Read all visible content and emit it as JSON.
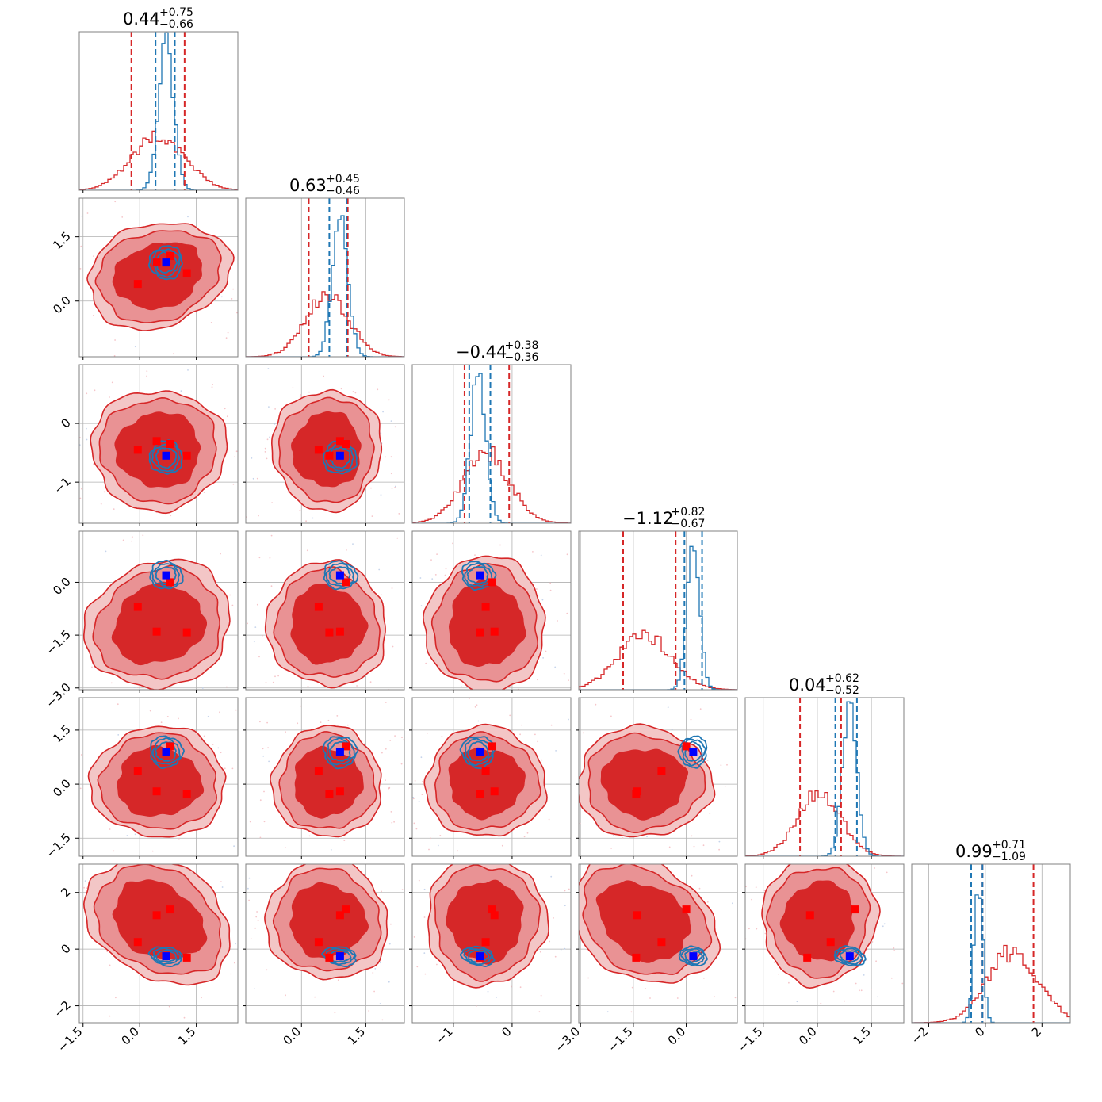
{
  "chart_data": {
    "type": "corner",
    "n_params": 6,
    "colors": {
      "red": "#d62728",
      "red_mid": "#e99294",
      "red_light": "#f3c6c6",
      "blue": "#1f77b4",
      "truth_blue": "#0000ff",
      "truth_red": "#ff0000",
      "grid": "#b0b0b0"
    },
    "params": [
      {
        "median": 0.44,
        "plus": 0.75,
        "minus": 0.66,
        "title": {
          "main": "0.44",
          "sup": "+0.75",
          "sub": "−0.66"
        },
        "range": [
          -1.6,
          2.6
        ],
        "ticks": [
          -1.5,
          0.0,
          1.5
        ],
        "tick_labels": [
          "−1.5",
          "0.0",
          "1.5"
        ],
        "red": {
          "mean": 0.5,
          "sd": 0.7
        },
        "blue": {
          "mean": 0.7,
          "sd": 0.2
        },
        "red_lines": [
          -0.22,
          1.19
        ],
        "blue_lines": [
          0.42,
          0.93
        ]
      },
      {
        "median": 0.63,
        "plus": 0.45,
        "minus": 0.46,
        "title": {
          "main": "0.63",
          "sup": "+0.45",
          "sub": "−0.46"
        },
        "range": [
          -1.3,
          2.4
        ],
        "ticks": [
          0.0,
          1.5
        ],
        "tick_labels": [
          "0.0",
          "1.5"
        ],
        "red": {
          "mean": 0.6,
          "sd": 0.5
        },
        "blue": {
          "mean": 0.9,
          "sd": 0.18
        },
        "red_lines": [
          0.17,
          1.08
        ],
        "blue_lines": [
          0.65,
          1.05
        ]
      },
      {
        "median": -0.44,
        "plus": 0.38,
        "minus": 0.36,
        "title": {
          "main": "−0.44",
          "sup": "+0.38",
          "sub": "−0.36"
        },
        "range": [
          -1.7,
          1.0
        ],
        "ticks": [
          -1,
          0
        ],
        "tick_labels": [
          "−1",
          "0"
        ],
        "red": {
          "mean": -0.45,
          "sd": 0.4
        },
        "blue": {
          "mean": -0.58,
          "sd": 0.13
        },
        "red_lines": [
          -0.81,
          -0.05
        ],
        "blue_lines": [
          -0.73,
          -0.37
        ]
      },
      {
        "median": -1.12,
        "plus": 0.82,
        "minus": 0.67,
        "title": {
          "main": "−1.12",
          "sup": "+0.82",
          "sub": "−0.67"
        },
        "range": [
          -3.05,
          1.45
        ],
        "ticks": [
          -3.0,
          -1.5,
          0.0
        ],
        "tick_labels": [
          "−3.0",
          "−1.5",
          "0.0"
        ],
        "red": {
          "mean": -1.2,
          "sd": 0.75
        },
        "blue": {
          "mean": 0.2,
          "sd": 0.18
        },
        "red_lines": [
          -1.79,
          -0.3
        ],
        "blue_lines": [
          -0.05,
          0.45
        ]
      },
      {
        "median": 0.04,
        "plus": 0.62,
        "minus": 0.52,
        "title": {
          "main": "0.04",
          "sup": "+0.62",
          "sub": "−0.52"
        },
        "range": [
          -2.0,
          2.4
        ],
        "ticks": [
          -1.5,
          0.0,
          1.5
        ],
        "tick_labels": [
          "−1.5",
          "0.0",
          "1.5"
        ],
        "red": {
          "mean": 0.05,
          "sd": 0.6
        },
        "blue": {
          "mean": 0.9,
          "sd": 0.2
        },
        "red_lines": [
          -0.48,
          0.66
        ],
        "blue_lines": [
          0.5,
          1.1
        ]
      },
      {
        "median": 0.99,
        "plus": 0.71,
        "minus": 1.09,
        "title": {
          "main": "0.99",
          "sup": "+0.71",
          "sub": "−1.09"
        },
        "range": [
          -2.6,
          3.0
        ],
        "ticks": [
          -2,
          0,
          2
        ],
        "tick_labels": [
          "−2",
          "0",
          "2"
        ],
        "red": {
          "mean": 1.0,
          "sd": 0.9
        },
        "blue": {
          "mean": -0.25,
          "sd": 0.15
        },
        "red_lines": [
          -0.1,
          1.7
        ],
        "blue_lines": [
          -0.5,
          -0.1
        ]
      }
    ],
    "truths_blue": [
      0.7,
      0.9,
      -0.55,
      0.2,
      0.9,
      -0.25
    ],
    "truths_red": [
      [
        0.45,
        0.9,
        -0.3,
        -1.4,
        -0.2,
        1.2
      ],
      [
        1.25,
        0.65,
        -0.55,
        -1.42,
        -0.28,
        -0.3
      ],
      [
        -0.05,
        0.4,
        -0.45,
        -0.7,
        0.37,
        0.25
      ],
      [
        0.8,
        1.05,
        -0.35,
        0.0,
        1.05,
        1.4
      ]
    ],
    "correlations": [
      [
        1.0,
        0.3,
        0.0,
        0.4,
        0.0,
        -0.6
      ],
      [
        0.3,
        1.0,
        0.0,
        0.35,
        0.0,
        -0.5
      ],
      [
        0.0,
        0.0,
        1.0,
        0.0,
        0.0,
        0.0
      ],
      [
        0.4,
        0.35,
        0.0,
        1.0,
        0.0,
        -0.6
      ],
      [
        0.0,
        0.0,
        0.0,
        0.0,
        1.0,
        -0.15
      ],
      [
        -0.6,
        -0.5,
        0.0,
        -0.6,
        -0.15,
        1.0
      ]
    ],
    "grid": true,
    "legend": "none"
  }
}
